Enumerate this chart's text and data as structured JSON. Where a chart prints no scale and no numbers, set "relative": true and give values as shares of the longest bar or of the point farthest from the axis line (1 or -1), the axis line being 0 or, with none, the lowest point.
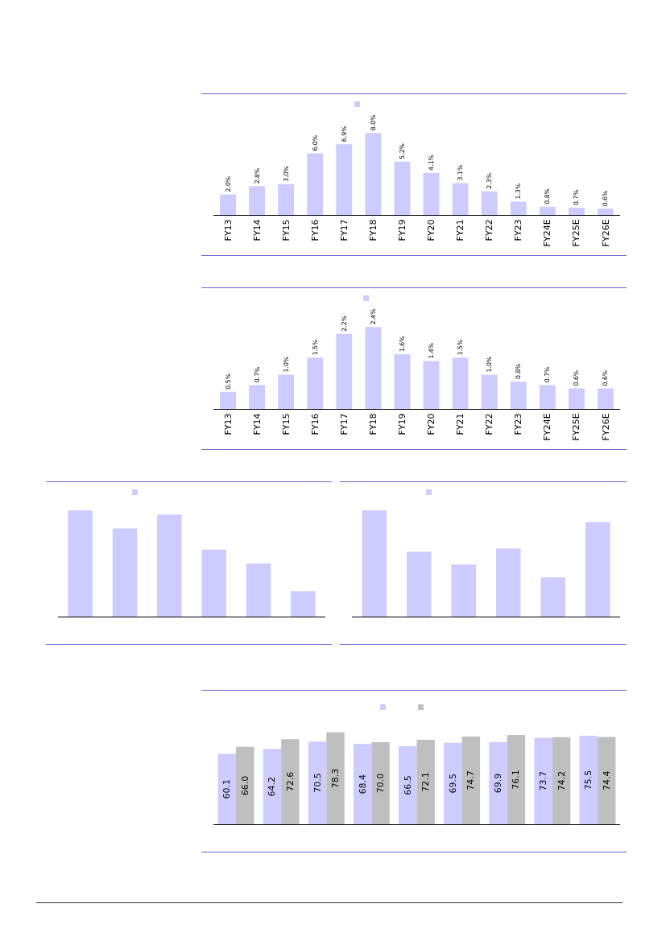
{
  "chart_data": [
    {
      "type": "bar",
      "categories": [
        "FY13",
        "FY14",
        "FY15",
        "FY16",
        "FY17",
        "FY18",
        "FY19",
        "FY20",
        "FY21",
        "FY22",
        "FY23",
        "FY24E",
        "FY25E",
        "FY26E"
      ],
      "series": [
        {
          "color": "#ccccff",
          "values": [
            2.0,
            2.8,
            3.0,
            6.0,
            6.9,
            8.0,
            5.2,
            4.1,
            3.1,
            2.3,
            1.3,
            0.8,
            0.7,
            0.6
          ],
          "value_labels": [
            "2.0%",
            "2.8%",
            "3.0%",
            "6.0%",
            "6.9%",
            "8.0%",
            "5.2%",
            "4.1%",
            "3.1%",
            "2.3%",
            "1.3%",
            "0.8%",
            "0.7%",
            "0.6%"
          ]
        }
      ]
    },
    {
      "type": "bar",
      "categories": [
        "FY13",
        "FY14",
        "FY15",
        "FY16",
        "FY17",
        "FY18",
        "FY19",
        "FY20",
        "FY21",
        "FY22",
        "FY23",
        "FY24E",
        "FY25E",
        "FY26E"
      ],
      "series": [
        {
          "color": "#ccccff",
          "values": [
            0.5,
            0.7,
            1.0,
            1.5,
            2.2,
            2.4,
            1.6,
            1.4,
            1.5,
            1.0,
            0.8,
            0.7,
            0.6,
            0.6
          ],
          "value_labels": [
            "0.5%",
            "0.7%",
            "1.0%",
            "1.5%",
            "2.2%",
            "2.4%",
            "1.6%",
            "1.4%",
            "1.5%",
            "1.0%",
            "0.8%",
            "0.7%",
            "0.6%",
            "0.6%"
          ]
        }
      ]
    },
    {
      "type": "bar",
      "relative": true,
      "categories": [
        null,
        null,
        null,
        null,
        null,
        null
      ],
      "series": [
        {
          "color": "#ccccff",
          "values": [
            1,
            0.83,
            0.96,
            0.63,
            0.5,
            0.24
          ]
        }
      ]
    },
    {
      "type": "bar",
      "relative": true,
      "categories": [
        null,
        null,
        null,
        null,
        null,
        null
      ],
      "series": [
        {
          "color": "#ccccff",
          "values": [
            1,
            0.61,
            0.49,
            0.64,
            0.37,
            0.89
          ]
        }
      ]
    },
    {
      "type": "bar",
      "categories": [
        null,
        null,
        null,
        null,
        null,
        null,
        null,
        null,
        null
      ],
      "series": [
        {
          "color": "#ccccff",
          "values": [
            60.1,
            64.2,
            70.5,
            68.4,
            66.5,
            69.5,
            69.9,
            73.7,
            75.5
          ],
          "value_labels": [
            "60.1",
            "64.2",
            "70.5",
            "68.4",
            "66.5",
            "69.5",
            "69.9",
            "73.7",
            "75.5"
          ]
        },
        {
          "color": "#bfbfbf",
          "values": [
            66.0,
            72.6,
            78.3,
            70.0,
            72.1,
            74.7,
            76.1,
            74.2,
            74.4
          ],
          "value_labels": [
            "66.0",
            "72.6",
            "78.3",
            "70.0",
            "72.1",
            "74.7",
            "76.1",
            "74.2",
            "74.4"
          ]
        }
      ]
    }
  ]
}
